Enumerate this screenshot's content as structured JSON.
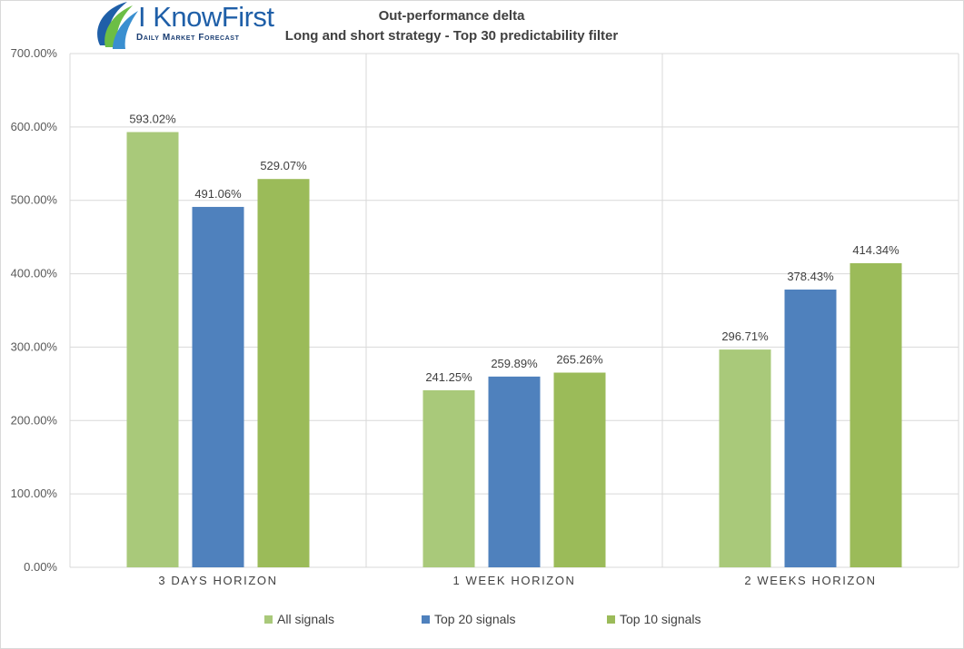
{
  "logo": {
    "brand": "I KnowFirst",
    "tagline": "Daily Market Forecast"
  },
  "title_lines": [
    "Out-performance delta",
    "Long and short strategy - Top 30 predictability filter"
  ],
  "colors": {
    "all_signals": "#a9c97a",
    "top20": "#4f81bd",
    "top10": "#9bbb59",
    "grid": "#d9d9d9",
    "axis_text": "#595959"
  },
  "chart_data": {
    "type": "bar",
    "title": "Out-performance delta - Long and short strategy - Top 30 predictability filter",
    "categories": [
      "3 DAYS HORIZON",
      "1 WEEK HORIZON",
      "2 WEEKS HORIZON"
    ],
    "series": [
      {
        "name": "All signals",
        "values": [
          593.02,
          241.25,
          296.71
        ],
        "labels": [
          "593.02%",
          "241.25%",
          "296.71%"
        ]
      },
      {
        "name": "Top 20 signals",
        "values": [
          491.06,
          259.89,
          378.43
        ],
        "labels": [
          "491.06%",
          "259.89%",
          "378.43%"
        ]
      },
      {
        "name": "Top 10 signals",
        "values": [
          529.07,
          265.26,
          414.34
        ],
        "labels": [
          "529.07%",
          "265.26%",
          "414.34%"
        ]
      }
    ],
    "y_ticks": [
      "0.00%",
      "100.00%",
      "200.00%",
      "300.00%",
      "400.00%",
      "500.00%",
      "600.00%",
      "700.00%"
    ],
    "ylim": [
      0,
      700
    ],
    "grid": true,
    "legend_position": "bottom"
  }
}
